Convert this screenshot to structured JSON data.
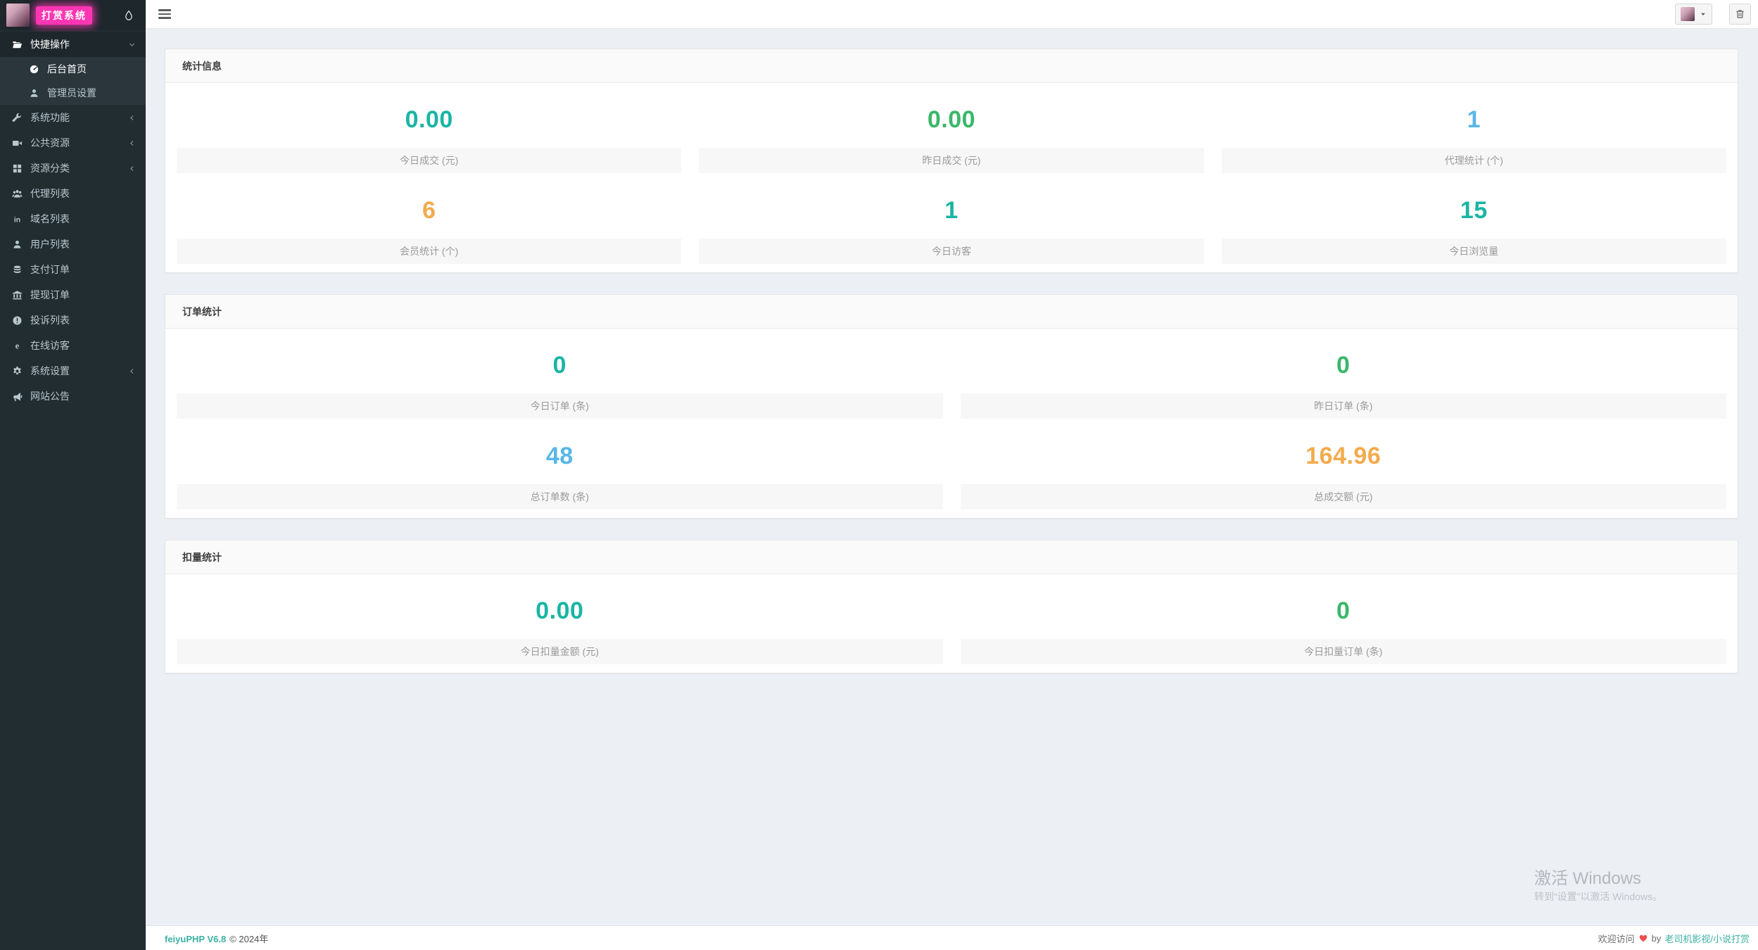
{
  "brand": {
    "title": "打赏系统",
    "drop_icon": "water-drop-icon"
  },
  "topbar": {
    "menu_icon": "hamburger-icon",
    "user_avatar": "user-avatar",
    "caret_icon": "caret-down-icon",
    "trash_icon": "trash-icon"
  },
  "sidebar": {
    "items": [
      {
        "name": "quick-actions",
        "label": "快捷操作",
        "icon": "folder-open-icon",
        "chevron": "down",
        "open": true,
        "children": [
          {
            "name": "dashboard-home",
            "label": "后台首页",
            "icon": "dashboard-icon",
            "active": true
          },
          {
            "name": "admin-settings",
            "label": "管理员设置",
            "icon": "user-icon",
            "active": false
          }
        ]
      },
      {
        "name": "system-functions",
        "label": "系统功能",
        "icon": "wrench-icon",
        "chevron": "left"
      },
      {
        "name": "public-resources",
        "label": "公共资源",
        "icon": "video-icon",
        "chevron": "left"
      },
      {
        "name": "resource-categories",
        "label": "资源分类",
        "icon": "grid-icon",
        "chevron": "left"
      },
      {
        "name": "agent-list",
        "label": "代理列表",
        "icon": "users-icon"
      },
      {
        "name": "domain-list",
        "label": "域名列表",
        "icon": "linkedin-icon"
      },
      {
        "name": "user-list",
        "label": "用户列表",
        "icon": "user-icon"
      },
      {
        "name": "payment-orders",
        "label": "支付订单",
        "icon": "database-icon"
      },
      {
        "name": "withdraw-orders",
        "label": "提现订单",
        "icon": "bank-icon"
      },
      {
        "name": "complaint-list",
        "label": "投诉列表",
        "icon": "exclamation-circle-icon"
      },
      {
        "name": "online-visitors",
        "label": "在线访客",
        "icon": "edge-icon"
      },
      {
        "name": "system-settings",
        "label": "系统设置",
        "icon": "gear-icon",
        "chevron": "left"
      },
      {
        "name": "site-announcement",
        "label": "网站公告",
        "icon": "megaphone-icon"
      }
    ]
  },
  "panels": [
    {
      "title": "统计信息",
      "columns": 3,
      "stats": [
        {
          "value": "0.00",
          "label": "今日成交 (元)",
          "color": "teal"
        },
        {
          "value": "0.00",
          "label": "昨日成交 (元)",
          "color": "green"
        },
        {
          "value": "1",
          "label": "代理统计 (个)",
          "color": "blue"
        },
        {
          "value": "6",
          "label": "会员统计 (个)",
          "color": "orange"
        },
        {
          "value": "1",
          "label": "今日访客",
          "color": "teal"
        },
        {
          "value": "15",
          "label": "今日浏览量",
          "color": "teal"
        }
      ]
    },
    {
      "title": "订单统计",
      "columns": 2,
      "stats": [
        {
          "value": "0",
          "label": "今日订单 (条)",
          "color": "teal"
        },
        {
          "value": "0",
          "label": "昨日订单 (条)",
          "color": "green"
        },
        {
          "value": "48",
          "label": "总订单数 (条)",
          "color": "blue"
        },
        {
          "value": "164.96",
          "label": "总成交额 (元)",
          "color": "orange"
        }
      ]
    },
    {
      "title": "扣量统计",
      "columns": 2,
      "stats": [
        {
          "value": "0.00",
          "label": "今日扣量金额 (元)",
          "color": "teal"
        },
        {
          "value": "0",
          "label": "今日扣量订单 (条)",
          "color": "green"
        }
      ]
    }
  ],
  "footer": {
    "app_name": "feiyuPHP V6.8",
    "copyright": "© 2024年",
    "welcome": "欢迎访问",
    "heart_icon": "heart-icon",
    "by": "by",
    "link": "老司机影视/小说打赏"
  },
  "watermark": {
    "line1": "激活 Windows",
    "line2": "转到“设置”以激活 Windows。"
  },
  "colors": {
    "teal": "#1ab5a3",
    "green": "#3bb76a",
    "blue": "#58b6e8",
    "orange": "#f2ab4c",
    "link_teal": "#3ab0a2",
    "brand_pink": "#ff36b3"
  }
}
